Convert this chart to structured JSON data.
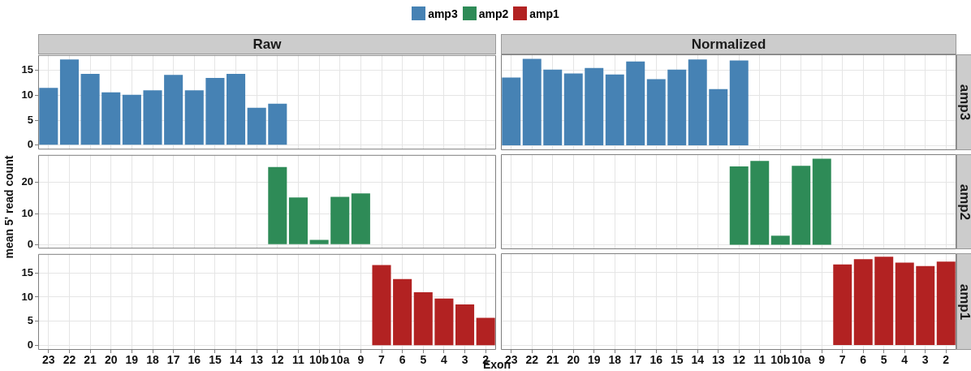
{
  "chart_data": [
    {
      "type": "bar",
      "title": "Raw",
      "legend": "top",
      "grid": true,
      "tick_labels": "y",
      "categories": [
        "23",
        "22",
        "21",
        "20",
        "19",
        "18",
        "17",
        "16",
        "15",
        "14",
        "13",
        "12",
        "11",
        "10b",
        "10a",
        "9",
        "7",
        "6",
        "5",
        "4",
        "3",
        "2"
      ],
      "ylim": [
        -0.9,
        18.1
      ],
      "yticks": [
        0,
        5,
        10,
        15
      ],
      "series": [
        {
          "name": "amp3",
          "color": "#4682b4",
          "values": [
            11.5,
            17.2,
            14.3,
            10.6,
            10.1,
            11.0,
            14.1,
            11.0,
            13.5,
            14.3,
            7.5,
            8.3,
            null,
            null,
            null,
            null,
            null,
            null,
            null,
            null,
            null,
            null
          ]
        }
      ]
    },
    {
      "type": "bar",
      "title": "Normalized",
      "grid": true,
      "tick_labels": false,
      "categories": [
        "23",
        "22",
        "21",
        "20",
        "19",
        "18",
        "17",
        "16",
        "15",
        "14",
        "13",
        "12",
        "11",
        "10b",
        "10a",
        "9",
        "7",
        "6",
        "5",
        "4",
        "3",
        "2"
      ],
      "ylim": [
        -0.9,
        18.1
      ],
      "yticks": [
        0,
        5,
        10,
        15
      ],
      "series": [
        {
          "name": "amp3",
          "color": "#4682b4",
          "values": [
            13.5,
            17.2,
            15.1,
            14.3,
            15.4,
            14.1,
            16.7,
            13.2,
            15.1,
            17.1,
            11.2,
            16.9,
            null,
            null,
            null,
            null,
            null,
            null,
            null,
            null,
            null,
            null
          ]
        }
      ]
    },
    {
      "type": "bar",
      "ylabel": "mean 5' read count",
      "grid": true,
      "tick_labels": "y",
      "categories": [
        "23",
        "22",
        "21",
        "20",
        "19",
        "18",
        "17",
        "16",
        "15",
        "14",
        "13",
        "12",
        "11",
        "10b",
        "10a",
        "9",
        "7",
        "6",
        "5",
        "4",
        "3",
        "2"
      ],
      "ylim": [
        -1.3,
        28.9
      ],
      "yticks": [
        0,
        10,
        20
      ],
      "series": [
        {
          "name": "amp2",
          "color": "#2e8b57",
          "values": [
            null,
            null,
            null,
            null,
            null,
            null,
            null,
            null,
            null,
            null,
            null,
            25.0,
            15.2,
            1.5,
            15.4,
            16.5,
            null,
            null,
            null,
            null,
            null,
            null
          ]
        }
      ]
    },
    {
      "type": "bar",
      "grid": true,
      "tick_labels": false,
      "categories": [
        "23",
        "22",
        "21",
        "20",
        "19",
        "18",
        "17",
        "16",
        "15",
        "14",
        "13",
        "12",
        "11",
        "10b",
        "10a",
        "9",
        "7",
        "6",
        "5",
        "4",
        "3",
        "2"
      ],
      "ylim": [
        -1.3,
        28.9
      ],
      "yticks": [
        0,
        10,
        20
      ],
      "series": [
        {
          "name": "amp2",
          "color": "#2e8b57",
          "values": [
            null,
            null,
            null,
            null,
            null,
            null,
            null,
            null,
            null,
            null,
            null,
            25.0,
            26.8,
            3.0,
            25.2,
            27.5,
            null,
            null,
            null,
            null,
            null,
            null
          ]
        }
      ]
    },
    {
      "type": "bar",
      "xlabel": "Exon",
      "grid": true,
      "categories": [
        "23",
        "22",
        "21",
        "20",
        "19",
        "18",
        "17",
        "16",
        "15",
        "14",
        "13",
        "12",
        "11",
        "10b",
        "10a",
        "9",
        "7",
        "6",
        "5",
        "4",
        "3",
        "2"
      ],
      "ylim": [
        -0.9,
        18.9
      ],
      "yticks": [
        0,
        5,
        10,
        15
      ],
      "series": [
        {
          "name": "amp1",
          "color": "#b22222",
          "values": [
            null,
            null,
            null,
            null,
            null,
            null,
            null,
            null,
            null,
            null,
            null,
            null,
            null,
            null,
            null,
            null,
            16.6,
            13.7,
            11.0,
            9.7,
            8.5,
            5.7
          ]
        }
      ]
    },
    {
      "type": "bar",
      "grid": true,
      "tick_labels": "x",
      "categories": [
        "23",
        "22",
        "21",
        "20",
        "19",
        "18",
        "17",
        "16",
        "15",
        "14",
        "13",
        "12",
        "11",
        "10b",
        "10a",
        "9",
        "7",
        "6",
        "5",
        "4",
        "3",
        "2"
      ],
      "ylim": [
        -0.9,
        18.9
      ],
      "yticks": [
        0,
        5,
        10,
        15
      ],
      "series": [
        {
          "name": "amp1",
          "color": "#b22222",
          "values": [
            null,
            null,
            null,
            null,
            null,
            null,
            null,
            null,
            null,
            null,
            null,
            null,
            null,
            null,
            null,
            null,
            16.6,
            17.7,
            18.2,
            17.0,
            16.3,
            17.2
          ]
        }
      ]
    }
  ]
}
